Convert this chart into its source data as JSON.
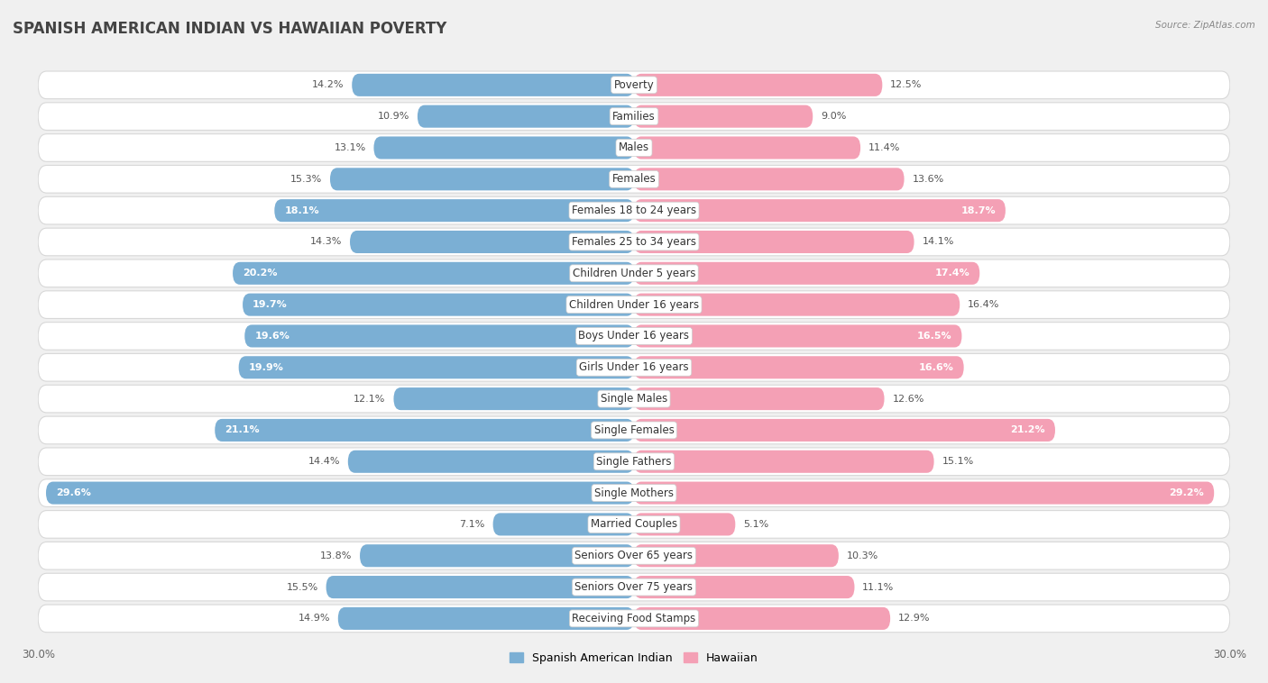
{
  "title": "SPANISH AMERICAN INDIAN VS HAWAIIAN POVERTY",
  "source": "Source: ZipAtlas.com",
  "categories": [
    "Poverty",
    "Families",
    "Males",
    "Females",
    "Females 18 to 24 years",
    "Females 25 to 34 years",
    "Children Under 5 years",
    "Children Under 16 years",
    "Boys Under 16 years",
    "Girls Under 16 years",
    "Single Males",
    "Single Females",
    "Single Fathers",
    "Single Mothers",
    "Married Couples",
    "Seniors Over 65 years",
    "Seniors Over 75 years",
    "Receiving Food Stamps"
  ],
  "left_values": [
    14.2,
    10.9,
    13.1,
    15.3,
    18.1,
    14.3,
    20.2,
    19.7,
    19.6,
    19.9,
    12.1,
    21.1,
    14.4,
    29.6,
    7.1,
    13.8,
    15.5,
    14.9
  ],
  "right_values": [
    12.5,
    9.0,
    11.4,
    13.6,
    18.7,
    14.1,
    17.4,
    16.4,
    16.5,
    16.6,
    12.6,
    21.2,
    15.1,
    29.2,
    5.1,
    10.3,
    11.1,
    12.9
  ],
  "left_color": "#7bafd4",
  "right_color": "#f4a0b5",
  "left_label": "Spanish American Indian",
  "right_label": "Hawaiian",
  "background_color": "#f0f0f0",
  "row_bg_color": "#ffffff",
  "row_border_color": "#d8d8d8",
  "axis_max": 30.0,
  "title_fontsize": 12,
  "label_fontsize": 8.5,
  "value_fontsize": 8,
  "legend_fontsize": 9,
  "large_threshold": 16.5
}
